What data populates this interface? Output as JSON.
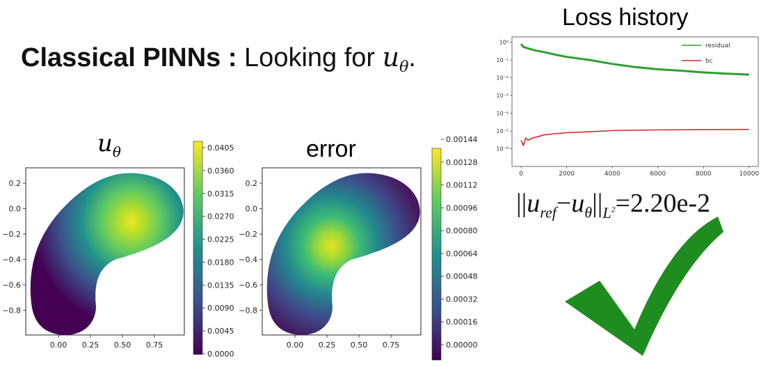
{
  "heading": {
    "bold": "Classical PINNs :",
    "text": "Looking for",
    "math_var": "u",
    "math_sub": "θ",
    "end": "."
  },
  "u_plot": {
    "title_var": "u",
    "title_sub": "θ",
    "y_ticks": [
      "0.2",
      "0.0",
      "−0.2",
      "−0.4",
      "−0.6",
      "−0.8"
    ],
    "x_ticks": [
      "0.00",
      "0.25",
      "0.50",
      "0.75"
    ],
    "colorbar_ticks": [
      "0.0405",
      "0.0360",
      "0.0315",
      "0.0270",
      "0.0225",
      "0.0180",
      "0.0135",
      "0.0090",
      "0.0045",
      "0.0000"
    ]
  },
  "error_plot": {
    "title": "error",
    "y_ticks": [
      "0.2",
      "0.0",
      "−0.2",
      "−0.4",
      "−0.6",
      "−0.8"
    ],
    "x_ticks": [
      "0.00",
      "0.25",
      "0.50",
      "0.75"
    ],
    "colorbar_ticks": [
      "0.00144",
      "0.00128",
      "0.00112",
      "0.00096",
      "0.00080",
      "0.00064",
      "0.00048",
      "0.00032",
      "0.00016",
      "0.00000"
    ]
  },
  "loss_title": "Loss history",
  "chart_data": {
    "type": "line",
    "title": "Loss history",
    "x_ticks": [
      "0",
      "2000",
      "4000",
      "6000",
      "8000",
      "10000"
    ],
    "y_ticks": [
      "10⁰",
      "10⁻¹",
      "10⁻²",
      "10⁻³",
      "10⁻⁴",
      "10⁻⁵",
      "10⁻⁶"
    ],
    "log_y": true,
    "xlim": [
      -400,
      10400
    ],
    "ylim": [
      1e-07,
      2
    ],
    "legend": "top-right",
    "series": [
      {
        "name": "residual",
        "color": "#2ca02c",
        "x": [
          0,
          100,
          300,
          600,
          1000,
          1500,
          2000,
          3000,
          4000,
          5000,
          6000,
          7000,
          8000,
          9000,
          10000
        ],
        "values": [
          0.8,
          0.55,
          0.45,
          0.35,
          0.28,
          0.2,
          0.15,
          0.1,
          0.06,
          0.04,
          0.03,
          0.025,
          0.02,
          0.017,
          0.015
        ]
      },
      {
        "name": "bc",
        "color": "#d62728",
        "x": [
          0,
          100,
          200,
          300,
          500,
          800,
          1000,
          1500,
          2000,
          3000,
          4000,
          5000,
          6000,
          8000,
          10000
        ],
        "values": [
          3e-06,
          1.5e-06,
          4e-06,
          3e-06,
          4e-06,
          5e-06,
          6e-06,
          7e-06,
          8e-06,
          9e-06,
          1.05e-05,
          1.1e-05,
          1.15e-05,
          1.18e-05,
          1.2e-05
        ]
      }
    ]
  },
  "norm": {
    "left": "||",
    "u1": "u",
    "sub1": "ref",
    "minus": "−",
    "u2": "u",
    "sub2": "θ",
    "right": "||",
    "sub3": "L",
    "sup3": "2",
    "eq": "=",
    "value": "2.20e-2"
  },
  "check_color": "#1e8c1e"
}
